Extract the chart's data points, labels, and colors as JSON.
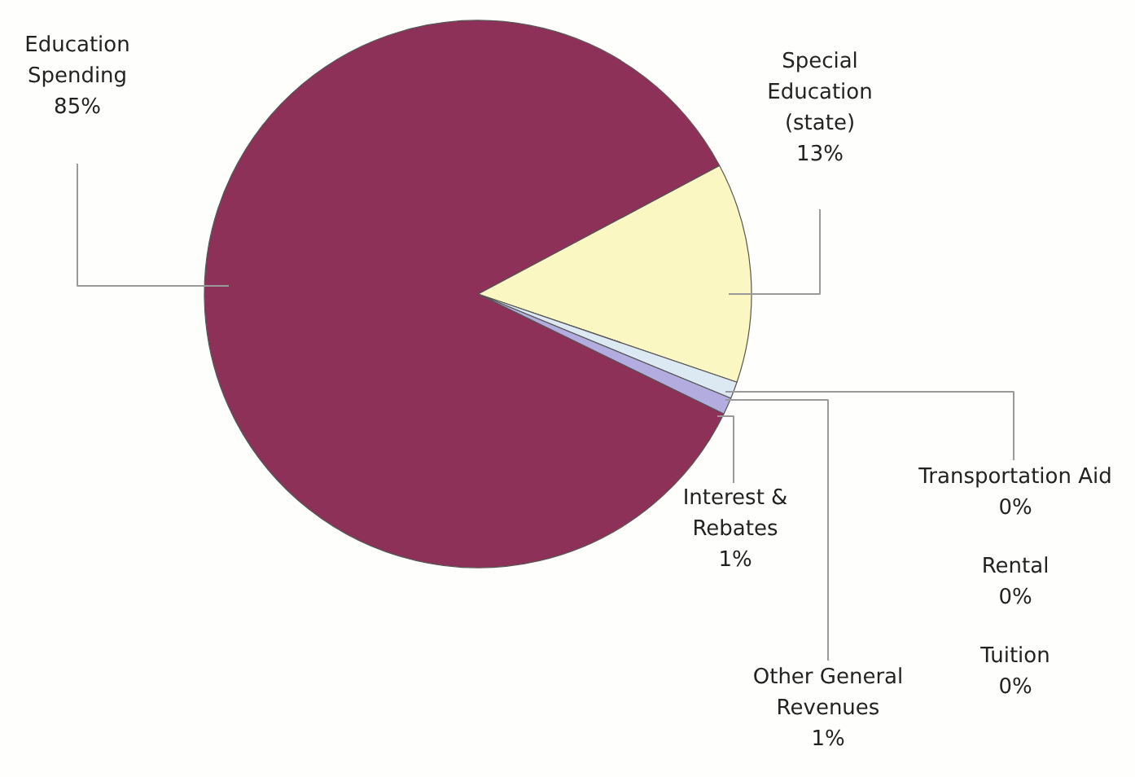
{
  "chart_data": {
    "type": "pie",
    "categories": [
      "Special Education (state)",
      "Transportation Aid",
      "Rental",
      "Tuition",
      "Other General Revenues",
      "Interest & Rebates",
      "Education Spending"
    ],
    "values": [
      13,
      0,
      0,
      0,
      1,
      1,
      85
    ],
    "colors": [
      "#fbf7c2",
      "#5f9a55",
      "#e8eef0",
      "#cfe0e8",
      "#dce9f2",
      "#b3addf",
      "#8e3158"
    ],
    "value_labels": [
      "13%",
      "0%",
      "0%",
      "0%",
      "1%",
      "1%",
      "85%"
    ]
  }
}
